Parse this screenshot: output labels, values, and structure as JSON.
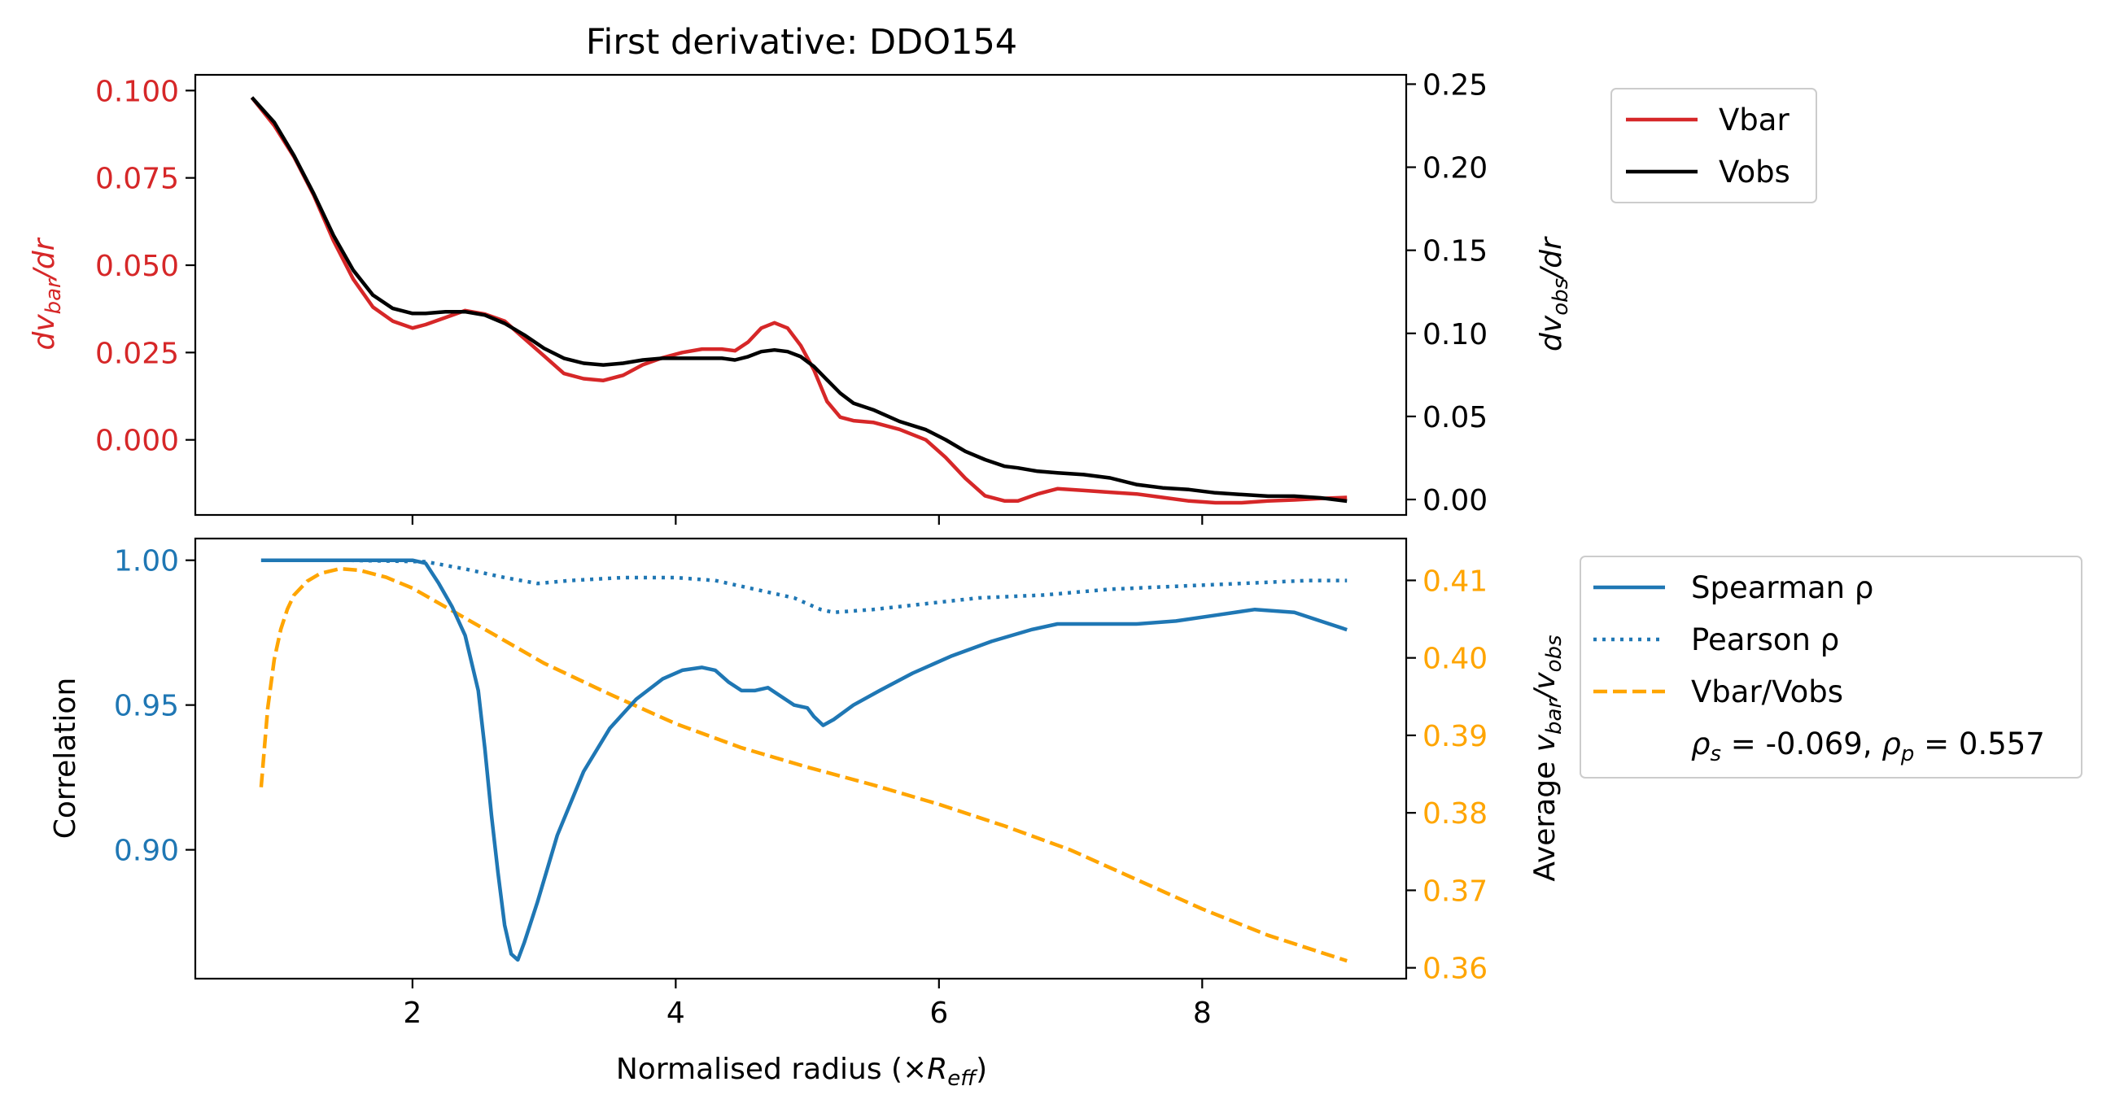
{
  "colors": {
    "vbar": "#d62728",
    "vobs": "#000000",
    "correlation": "#1f77b4",
    "ratio": "#ffa500",
    "axis": "#000000"
  },
  "chart_data": [
    {
      "type": "line",
      "title": "First derivative: DDO154",
      "xlim": [
        0.35,
        9.55
      ],
      "xticks": [
        2,
        4,
        6,
        8
      ],
      "ylabel_left": "dv_bar/dr",
      "ylabel_right": "dv_obs/dr",
      "ylim_left": [
        -0.0215,
        0.1045
      ],
      "ylim_right": [
        -0.0093,
        0.2556
      ],
      "yticks_left": [
        "0.100",
        "0.075",
        "0.050",
        "0.025",
        "0.000"
      ],
      "yticks_right": [
        "0.25",
        "0.20",
        "0.15",
        "0.10",
        "0.05",
        "0.00"
      ],
      "legend": {
        "placement": "outside right, top",
        "entries": [
          "Vbar",
          "Vobs"
        ]
      },
      "series": [
        {
          "name": "Vbar",
          "axis": "left",
          "x": [
            0.78,
            0.95,
            1.1,
            1.25,
            1.4,
            1.55,
            1.7,
            1.85,
            2.0,
            2.1,
            2.25,
            2.4,
            2.55,
            2.7,
            2.85,
            3.0,
            3.15,
            3.3,
            3.45,
            3.6,
            3.75,
            3.9,
            4.05,
            4.2,
            4.35,
            4.45,
            4.55,
            4.65,
            4.75,
            4.85,
            4.95,
            5.05,
            5.15,
            5.25,
            5.35,
            5.5,
            5.7,
            5.9,
            6.05,
            6.2,
            6.35,
            6.5,
            6.6,
            6.75,
            6.9,
            7.1,
            7.3,
            7.5,
            7.7,
            7.9,
            8.1,
            8.3,
            8.5,
            8.7,
            8.9,
            9.1
          ],
          "y": [
            0.098,
            0.09,
            0.081,
            0.07,
            0.057,
            0.046,
            0.038,
            0.034,
            0.032,
            0.033,
            0.035,
            0.037,
            0.036,
            0.034,
            0.029,
            0.024,
            0.019,
            0.0175,
            0.017,
            0.0185,
            0.0215,
            0.0235,
            0.025,
            0.026,
            0.026,
            0.0255,
            0.028,
            0.032,
            0.0335,
            0.032,
            0.027,
            0.02,
            0.011,
            0.0065,
            0.0055,
            0.005,
            0.003,
            0.0,
            -0.005,
            -0.011,
            -0.016,
            -0.0175,
            -0.0175,
            -0.0155,
            -0.014,
            -0.0145,
            -0.015,
            -0.0155,
            -0.0165,
            -0.0175,
            -0.018,
            -0.018,
            -0.0175,
            -0.0172,
            -0.0168,
            -0.0165
          ]
        },
        {
          "name": "Vobs",
          "axis": "right",
          "x": [
            0.78,
            0.95,
            1.1,
            1.25,
            1.4,
            1.55,
            1.7,
            1.85,
            2.0,
            2.1,
            2.25,
            2.4,
            2.55,
            2.7,
            2.85,
            3.0,
            3.15,
            3.3,
            3.45,
            3.6,
            3.75,
            3.9,
            4.05,
            4.2,
            4.35,
            4.45,
            4.55,
            4.65,
            4.75,
            4.85,
            4.95,
            5.05,
            5.15,
            5.25,
            5.35,
            5.5,
            5.7,
            5.9,
            6.05,
            6.2,
            6.35,
            6.5,
            6.6,
            6.75,
            6.9,
            7.1,
            7.3,
            7.5,
            7.7,
            7.9,
            8.1,
            8.3,
            8.5,
            8.7,
            8.9,
            9.1
          ],
          "y": [
            0.242,
            0.227,
            0.207,
            0.184,
            0.159,
            0.138,
            0.123,
            0.115,
            0.112,
            0.112,
            0.113,
            0.113,
            0.111,
            0.106,
            0.099,
            0.091,
            0.085,
            0.082,
            0.081,
            0.082,
            0.084,
            0.085,
            0.085,
            0.085,
            0.085,
            0.084,
            0.086,
            0.089,
            0.09,
            0.089,
            0.086,
            0.08,
            0.072,
            0.064,
            0.058,
            0.054,
            0.047,
            0.042,
            0.036,
            0.029,
            0.024,
            0.02,
            0.019,
            0.017,
            0.016,
            0.015,
            0.013,
            0.009,
            0.007,
            0.006,
            0.004,
            0.003,
            0.002,
            0.002,
            0.001,
            -0.001
          ]
        }
      ]
    },
    {
      "type": "line",
      "xlabel": "Normalised radius (×R_eff)",
      "xlim": [
        0.35,
        9.55
      ],
      "xticks": [
        2,
        4,
        6,
        8
      ],
      "ylabel_left": "Correlation",
      "ylabel_right": "Average v_bar/v_obs",
      "ylim_left": [
        0.8555,
        1.0075
      ],
      "ylim_right": [
        0.3586,
        0.4154
      ],
      "yticks_left": [
        "1.00",
        "0.95",
        "0.90"
      ],
      "yticks_right": [
        "0.41",
        "0.40",
        "0.39",
        "0.38",
        "0.37",
        "0.36"
      ],
      "legend": {
        "placement": "outside right, middle",
        "entries": [
          "Spearman ρ",
          "Pearson ρ",
          "Vbar/Vobs"
        ],
        "annotation": "ρ_s = -0.069, ρ_p = 0.557"
      },
      "series": [
        {
          "name": "Spearman ρ",
          "axis": "left",
          "style": "solid",
          "x": [
            0.85,
            1.2,
            1.6,
            2.0,
            2.1,
            2.2,
            2.3,
            2.4,
            2.5,
            2.55,
            2.6,
            2.65,
            2.7,
            2.75,
            2.8,
            2.85,
            2.95,
            3.1,
            3.3,
            3.5,
            3.7,
            3.9,
            4.05,
            4.2,
            4.3,
            4.4,
            4.5,
            4.6,
            4.7,
            4.8,
            4.9,
            5.0,
            5.05,
            5.12,
            5.2,
            5.35,
            5.55,
            5.8,
            6.1,
            6.4,
            6.7,
            6.9,
            7.2,
            7.5,
            7.8,
            8.1,
            8.4,
            8.7,
            9.1
          ],
          "y": [
            1.0,
            1.0,
            1.0,
            1.0,
            0.999,
            0.992,
            0.984,
            0.974,
            0.955,
            0.935,
            0.912,
            0.892,
            0.874,
            0.864,
            0.862,
            0.868,
            0.882,
            0.905,
            0.927,
            0.942,
            0.952,
            0.959,
            0.962,
            0.963,
            0.962,
            0.958,
            0.955,
            0.955,
            0.956,
            0.953,
            0.95,
            0.949,
            0.946,
            0.943,
            0.945,
            0.95,
            0.955,
            0.961,
            0.967,
            0.972,
            0.976,
            0.978,
            0.978,
            0.978,
            0.979,
            0.981,
            0.983,
            0.982,
            0.976
          ]
        },
        {
          "name": "Pearson ρ",
          "axis": "left",
          "style": "dotted",
          "x": [
            0.85,
            1.5,
            2.1,
            2.4,
            2.7,
            2.95,
            3.2,
            3.6,
            4.0,
            4.3,
            4.6,
            4.9,
            5.1,
            5.2,
            5.5,
            5.9,
            6.3,
            6.8,
            7.3,
            7.8,
            8.3,
            8.8,
            9.1
          ],
          "y": [
            1.0,
            1.0,
            0.9995,
            0.997,
            0.994,
            0.992,
            0.993,
            0.994,
            0.994,
            0.993,
            0.99,
            0.987,
            0.983,
            0.982,
            0.983,
            0.985,
            0.987,
            0.988,
            0.99,
            0.991,
            0.992,
            0.993,
            0.993
          ]
        },
        {
          "name": "Vbar/Vobs",
          "axis": "right",
          "style": "dashed",
          "x": [
            0.85,
            0.9,
            0.95,
            1.0,
            1.05,
            1.1,
            1.2,
            1.3,
            1.45,
            1.6,
            1.8,
            2.0,
            2.3,
            2.6,
            3.0,
            3.5,
            4.0,
            4.5,
            5.0,
            5.5,
            6.0,
            6.5,
            7.0,
            7.5,
            8.0,
            8.5,
            9.1
          ],
          "y": [
            0.3833,
            0.3935,
            0.3998,
            0.4037,
            0.4063,
            0.4081,
            0.4099,
            0.4109,
            0.4115,
            0.4113,
            0.4104,
            0.409,
            0.4061,
            0.4032,
            0.3993,
            0.3953,
            0.3915,
            0.3884,
            0.3859,
            0.3836,
            0.3811,
            0.3783,
            0.3752,
            0.3714,
            0.3676,
            0.3642,
            0.3609
          ]
        }
      ]
    }
  ]
}
